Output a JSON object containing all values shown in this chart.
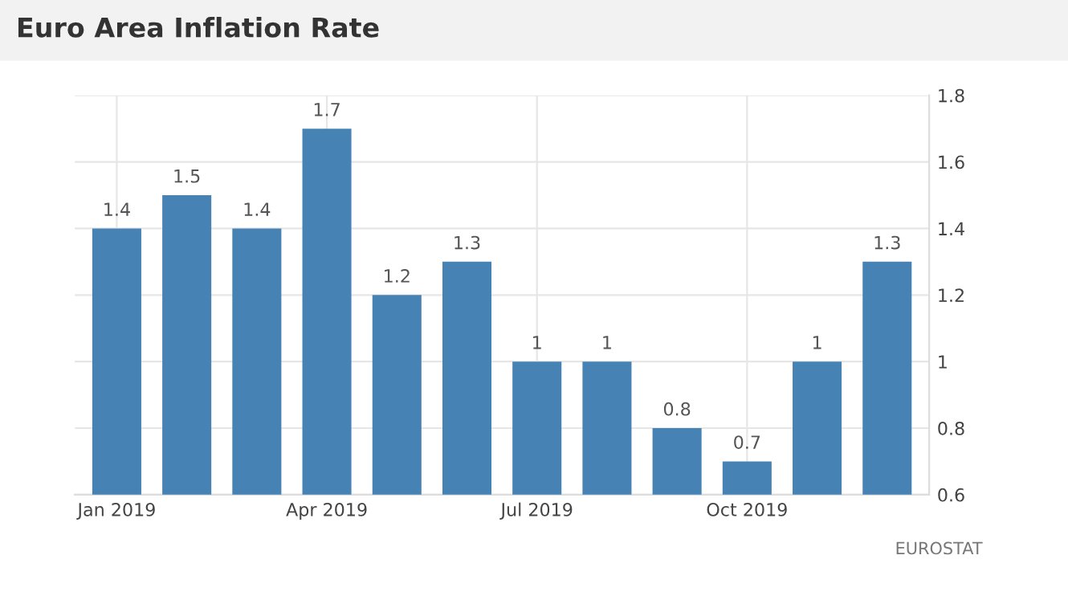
{
  "chart_data": {
    "type": "bar",
    "title": "Euro Area Inflation Rate",
    "categories": [
      "Jan 2019",
      null,
      null,
      "Apr 2019",
      null,
      null,
      "Jul 2019",
      null,
      null,
      "Oct 2019",
      null,
      null
    ],
    "values": [
      1.4,
      1.5,
      1.4,
      1.7,
      1.2,
      1.3,
      1,
      1,
      0.8,
      0.7,
      1,
      1.3
    ],
    "color": "#4682b4",
    "ylim": [
      0.6,
      1.8
    ],
    "yticks": [
      0.6,
      0.8,
      1,
      1.2,
      1.4,
      1.6,
      1.8
    ],
    "grid": true,
    "data_labels": true,
    "annotations": [
      "EUROSTAT"
    ]
  }
}
